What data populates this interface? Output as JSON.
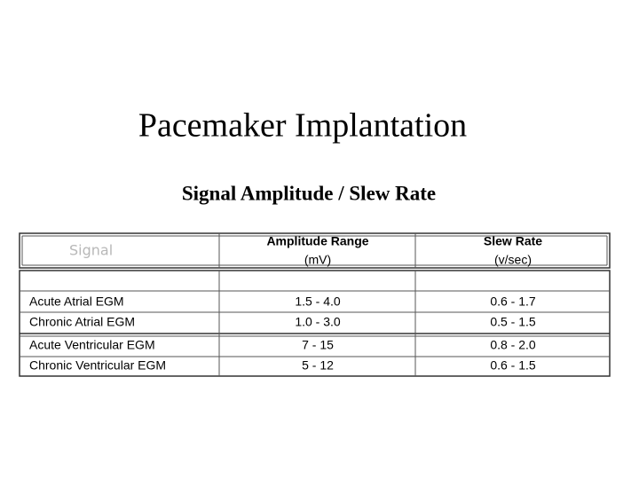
{
  "title": "Pacemaker Implantation",
  "subtitle": "Signal Amplitude / Slew Rate",
  "table": {
    "header": [
      {
        "label": "Signal"
      },
      {
        "label": "Amplitude Range",
        "unit": "(mV)"
      },
      {
        "label": "Slew Rate",
        "unit": "(v/sec)"
      }
    ],
    "rows": [
      [
        "Acute Atrial EGM",
        "1.5 - 4.0",
        "0.6 - 1.7"
      ],
      [
        "Chronic Atrial EGM",
        "1.0 - 3.0",
        "0.5 - 1.5"
      ],
      [
        "Acute Ventricular EGM",
        "7 - 15",
        "0.8 - 2.0"
      ],
      [
        "Chronic Ventricular EGM",
        "5 - 12",
        "0.6 - 1.5"
      ]
    ]
  }
}
